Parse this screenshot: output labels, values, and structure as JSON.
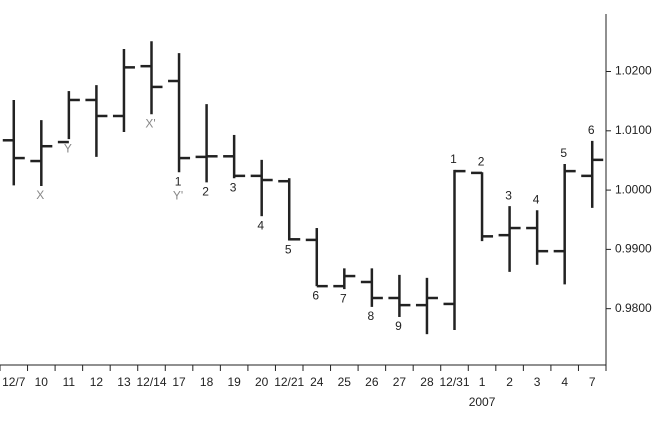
{
  "chart_data": {
    "type": "ohlc",
    "categories": [
      "12/7",
      "10",
      "11",
      "12",
      "13",
      "12/14",
      "17",
      "18",
      "19",
      "20",
      "12/21",
      "24",
      "25",
      "26",
      "27",
      "28",
      "12/31",
      "1",
      "2",
      "3",
      "4",
      "7"
    ],
    "open": [
      1.0084,
      1.0049,
      1.0081,
      1.0152,
      1.0125,
      1.0209,
      1.0184,
      1.0056,
      1.0057,
      1.0024,
      1.0015,
      0.9916,
      0.9838,
      0.9845,
      0.9818,
      0.9806,
      0.9808,
      1.0029,
      0.9924,
      0.9936,
      0.9897,
      1.0024
    ],
    "high": [
      1.0152,
      1.0118,
      1.0167,
      1.0177,
      1.0238,
      1.0251,
      1.0231,
      1.0145,
      1.0093,
      1.0051,
      1.002,
      0.9936,
      0.9868,
      0.9868,
      0.9857,
      0.9852,
      1.0034,
      1.003,
      0.9973,
      0.9966,
      1.0044,
      1.0083
    ],
    "low": [
      1.0008,
      1.0007,
      1.0086,
      1.0056,
      1.0098,
      1.0128,
      1.003,
      1.0013,
      1.002,
      0.9956,
      0.9915,
      0.9838,
      0.9833,
      0.9803,
      0.9786,
      0.9757,
      0.9764,
      0.9914,
      0.9862,
      0.9874,
      0.9841,
      0.997
    ],
    "close": [
      1.0054,
      1.0074,
      1.0152,
      1.0125,
      1.0207,
      1.0174,
      1.0054,
      1.0057,
      1.0024,
      1.0017,
      0.9917,
      0.9838,
      0.9855,
      0.9818,
      0.9806,
      0.9818,
      1.0032,
      0.9922,
      0.9936,
      0.9897,
      1.0032,
      1.0051
    ],
    "color": "#222222",
    "ylim": [
      0.9705,
      1.0297
    ],
    "yticks": [
      {
        "value": 0.98,
        "label": "0.9800"
      },
      {
        "value": 0.99,
        "label": "0.9900"
      },
      {
        "value": 1.0,
        "label": "1.0000"
      },
      {
        "value": 1.01,
        "label": "1.0100"
      },
      {
        "value": 1.02,
        "label": "1.0200"
      }
    ],
    "year_label": {
      "text": "2007",
      "index": 17
    },
    "annotations": [
      {
        "text": "X",
        "index": 1,
        "position": "below",
        "color": "#888888"
      },
      {
        "text": "Y",
        "index": 2,
        "position": "below",
        "color": "#888888"
      },
      {
        "text": "X'",
        "index": 5,
        "position": "below",
        "color": "#888888"
      },
      {
        "text": "1",
        "index": 6,
        "position": "below",
        "color": "#222222"
      },
      {
        "text": "Y'",
        "index": 6,
        "position": "below",
        "color": "#888888"
      },
      {
        "text": "2",
        "index": 7,
        "position": "below",
        "color": "#222222"
      },
      {
        "text": "3",
        "index": 8,
        "position": "below",
        "color": "#222222"
      },
      {
        "text": "4",
        "index": 9,
        "position": "below",
        "color": "#222222"
      },
      {
        "text": "5",
        "index": 10,
        "position": "below",
        "color": "#222222"
      },
      {
        "text": "6",
        "index": 11,
        "position": "below",
        "color": "#222222"
      },
      {
        "text": "7",
        "index": 12,
        "position": "below",
        "color": "#222222"
      },
      {
        "text": "8",
        "index": 13,
        "position": "below",
        "color": "#222222"
      },
      {
        "text": "9",
        "index": 14,
        "position": "below",
        "color": "#222222"
      },
      {
        "text": "1",
        "index": 16,
        "position": "above",
        "color": "#222222"
      },
      {
        "text": "2",
        "index": 17,
        "position": "above",
        "color": "#222222"
      },
      {
        "text": "3",
        "index": 18,
        "position": "above",
        "color": "#222222"
      },
      {
        "text": "4",
        "index": 19,
        "position": "above",
        "color": "#222222"
      },
      {
        "text": "5",
        "index": 20,
        "position": "above",
        "color": "#222222"
      },
      {
        "text": "6",
        "index": 21,
        "position": "above",
        "color": "#222222"
      }
    ]
  }
}
